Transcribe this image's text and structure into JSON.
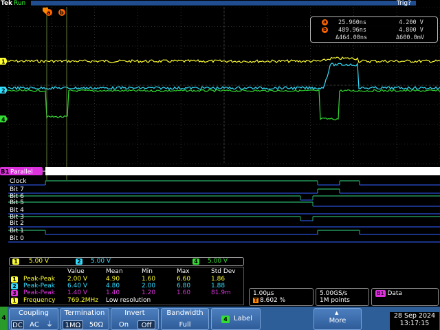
{
  "top_bar": {
    "brand": "Tek",
    "acq_state": "Run",
    "trigger_state": "Trig?"
  },
  "colors": {
    "ch1": "#ffff33",
    "ch2": "#33e0ff",
    "ch4": "#33dd33",
    "math": "#dd33dd",
    "digital_high": "#2ab46a",
    "digital_low": "#2a4fd6",
    "cursor_marker": "#ff6600"
  },
  "cursors": {
    "a_marker": "a",
    "b_marker": "b",
    "a_time": "25.960ns",
    "a_value": "4.200 V",
    "b_time": "489.96ns",
    "b_value": "4.800 V",
    "delta_time": "Δ464.00ns",
    "delta_value": "Δ600.0mV"
  },
  "channel_markers": {
    "ch1": "1",
    "ch2": "2",
    "ch4": "4",
    "bus": "B1"
  },
  "bus": {
    "label": "Parallel",
    "name_tag": "B1"
  },
  "digital_lines": [
    {
      "label": "Clock"
    },
    {
      "label": "Bit 7"
    },
    {
      "label": "Bit 6"
    },
    {
      "label": "Bit 5"
    },
    {
      "label": "Bit 4"
    },
    {
      "label": "Bit 3"
    },
    {
      "label": "Bit 2"
    },
    {
      "label": "Bit 1"
    },
    {
      "label": "Bit 0"
    }
  ],
  "scales": {
    "ch1": "5.00 V",
    "ch2": "5.00 V",
    "ch4": "5.00 V",
    "ch1_num": "1",
    "ch2_num": "2",
    "ch4_num": "4"
  },
  "measurements": {
    "headers": [
      "Value",
      "Mean",
      "Min",
      "Max",
      "Std Dev"
    ],
    "rows": [
      {
        "ch": "1",
        "name": "Peak-Peak",
        "value": "2.00 V",
        "mean": "4.90",
        "min": "1.60",
        "max": "6.60",
        "std": "1.86"
      },
      {
        "ch": "2",
        "name": "Peak-Peak",
        "value": "6.40 V",
        "mean": "4.80",
        "min": "2.00",
        "max": "6.80",
        "std": "1.88"
      },
      {
        "ch": "3",
        "name": "Peak-Peak",
        "value": "1.40 V",
        "mean": "1.40",
        "min": "1.20",
        "max": "1.60",
        "std": "81.9m"
      }
    ],
    "frequency": {
      "ch": "1",
      "name": "Frequency",
      "value": "769.2MHz",
      "note": "Low resolution"
    }
  },
  "horizontal": {
    "scale": "1.00µs",
    "trigger_position": "8.602 %",
    "trigger_icon": "T"
  },
  "acquisition": {
    "sample_rate": "5.00GS/s",
    "record_length": "1M points"
  },
  "bus_readout": {
    "tag": "B1",
    "label": "Data"
  },
  "menu": {
    "channel_tab": "4",
    "coupling": {
      "title": "Coupling",
      "options": [
        "DC",
        "AC",
        "⏚"
      ]
    },
    "termination": {
      "title": "Termination",
      "options": [
        "1MΩ",
        "50Ω"
      ]
    },
    "invert": {
      "title": "Invert",
      "options": [
        "On",
        "Off"
      ]
    },
    "bandwidth": {
      "title": "Bandwidth",
      "value": "Full"
    },
    "label_button": {
      "tag": "4",
      "title": "Label"
    },
    "more": {
      "title": "More"
    }
  },
  "datetime": {
    "date": "28 Sep 2024",
    "time": "13:17:15"
  }
}
